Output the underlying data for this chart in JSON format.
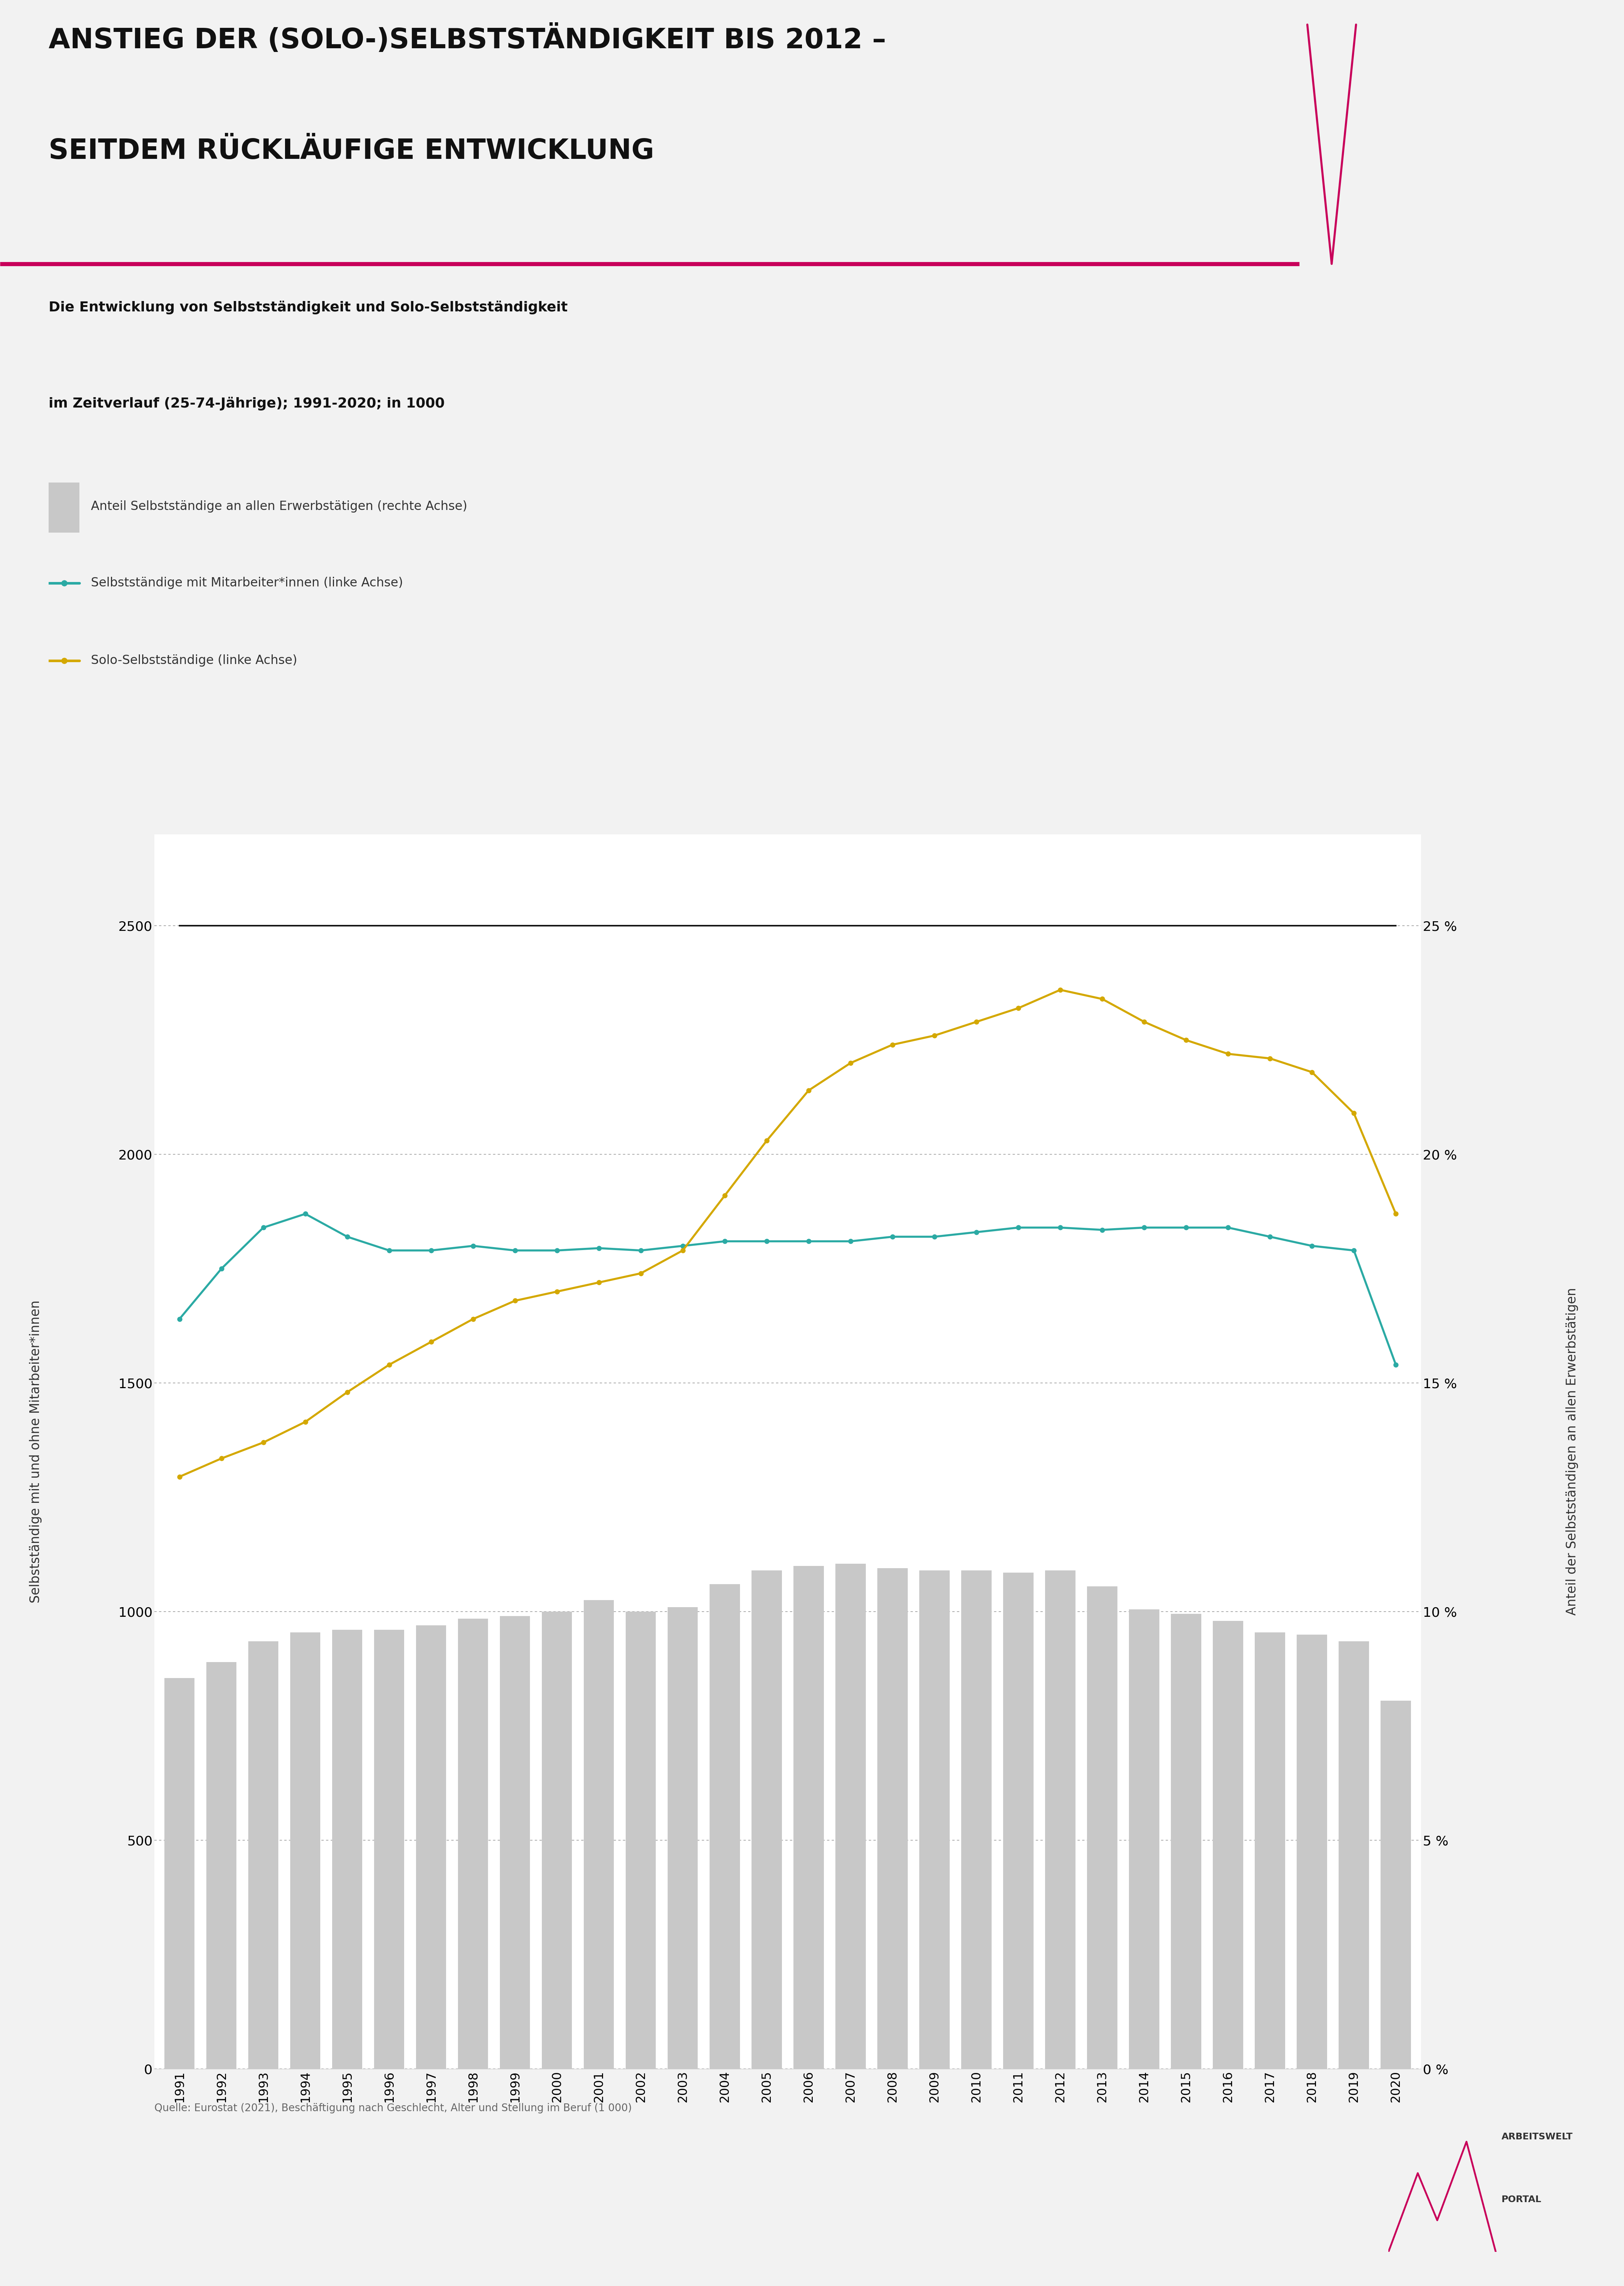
{
  "title_line1": "ANSTIEG DER (SOLO-)SELBSTSTÄNDIGKEIT BIS 2012 –",
  "title_line2": "SEITDEM RÜCKLÄUFIGE ENTWICKLUNG",
  "subtitle_line1": "Die Entwicklung von Selbstständigkeit und Solo-Selbstständigkeit",
  "subtitle_line2": "im Zeitverlauf (25-74-Jährige); 1991-2020; in 1000",
  "legend_bar_label": "Anteil Selbstständige an allen Erwerbstätigen (rechte Achse)",
  "legend_mit_label": "Selbstständige mit Mitarbeiter*innen (linke Achse)",
  "legend_solo_label": "Solo-Selbstständige (linke Achse)",
  "years": [
    1991,
    1992,
    1993,
    1994,
    1995,
    1996,
    1997,
    1998,
    1999,
    2000,
    2001,
    2002,
    2003,
    2004,
    2005,
    2006,
    2007,
    2008,
    2009,
    2010,
    2011,
    2012,
    2013,
    2014,
    2015,
    2016,
    2017,
    2018,
    2019,
    2020
  ],
  "bar_values": [
    855,
    890,
    935,
    955,
    960,
    960,
    970,
    985,
    990,
    1000,
    1025,
    1000,
    1010,
    1060,
    1090,
    1100,
    1105,
    1095,
    1090,
    1090,
    1085,
    1090,
    1055,
    1005,
    995,
    980,
    955,
    950,
    935,
    805
  ],
  "mitarbeiter_values": [
    1640,
    1750,
    1840,
    1870,
    1820,
    1790,
    1790,
    1800,
    1790,
    1790,
    1795,
    1790,
    1800,
    1810,
    1810,
    1810,
    1810,
    1820,
    1820,
    1830,
    1840,
    1840,
    1835,
    1840,
    1840,
    1840,
    1820,
    1800,
    1790,
    1540
  ],
  "solo_values": [
    1295,
    1335,
    1370,
    1415,
    1480,
    1540,
    1590,
    1640,
    1680,
    1700,
    1720,
    1740,
    1790,
    1910,
    2030,
    2140,
    2200,
    2240,
    2260,
    2290,
    2320,
    2360,
    2340,
    2290,
    2250,
    2220,
    2210,
    2180,
    2090,
    1870
  ],
  "bar_color": "#c8c8c8",
  "mitarbeiter_color": "#2baaa4",
  "solo_color": "#d4a800",
  "yticks_left": [
    0,
    500,
    1000,
    1500,
    2000,
    2500
  ],
  "yticks_right": [
    0,
    5,
    10,
    15,
    20,
    25
  ],
  "ytick_labels_right": [
    "0 %",
    "5 %",
    "10 %",
    "15 %",
    "20 %",
    "25 %"
  ],
  "background_color": "#f2f2f2",
  "chart_background": "#ffffff",
  "source_text": "Quelle: Eurostat (2021), Beschäftigung nach Geschlecht, Alter und Stellung im Beruf (1 000)",
  "ylabel_left": "Selbstständige mit und ohne Mitarbeiter*innen",
  "ylabel_right": "Anteil der Selbstständigen an allen Erwerbstätigen",
  "accent_color": "#c8005a"
}
